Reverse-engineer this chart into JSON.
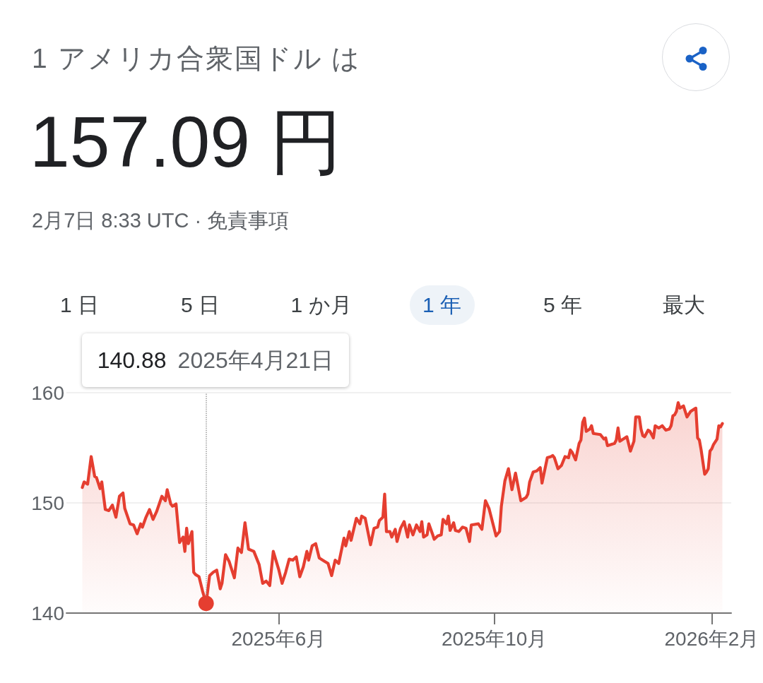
{
  "chart_data": {
    "type": "area",
    "title": "1 アメリカ合衆国ドル は",
    "subtitle": "157.09 円",
    "annotations": [
      "2月7日 8:33 UTC · 免責事項",
      "1 日",
      "5 日",
      "1 か月",
      "1 年",
      "5 年",
      "最大",
      "140.88",
      "2025年4月21日"
    ],
    "x": [
      "2025-02-10",
      "2025-02-11",
      "2025-02-13",
      "2025-02-15",
      "2025-02-17",
      "2025-02-18",
      "2025-02-20",
      "2025-02-21",
      "2025-02-23",
      "2025-02-25",
      "2025-02-27",
      "2025-03-01",
      "2025-03-03",
      "2025-03-05",
      "2025-03-06",
      "2025-03-09",
      "2025-03-11",
      "2025-03-13",
      "2025-03-15",
      "2025-03-16",
      "2025-03-18",
      "2025-03-20",
      "2025-03-22",
      "2025-03-24",
      "2025-03-27",
      "2025-03-29",
      "2025-03-30",
      "2025-04-01",
      "2025-04-02",
      "2025-04-04",
      "2025-04-06",
      "2025-04-08",
      "2025-04-09",
      "2025-04-10",
      "2025-04-11",
      "2025-04-13",
      "2025-04-14",
      "2025-04-15",
      "2025-04-17",
      "2025-04-19",
      "2025-04-21",
      "2025-04-23",
      "2025-04-25",
      "2025-04-27",
      "2025-04-29",
      "2025-04-30",
      "2025-05-02",
      "2025-05-04",
      "2025-05-07",
      "2025-05-09",
      "2025-05-11",
      "2025-05-13",
      "2025-05-15",
      "2025-05-18",
      "2025-05-21",
      "2025-05-23",
      "2025-05-25",
      "2025-05-27",
      "2025-05-29",
      "2025-06-01",
      "2025-06-03",
      "2025-06-05",
      "2025-06-07",
      "2025-06-09",
      "2025-06-11",
      "2025-06-13",
      "2025-06-15",
      "2025-06-17",
      "2025-06-18",
      "2025-06-20",
      "2025-06-22",
      "2025-06-24",
      "2025-06-27",
      "2025-06-29",
      "2025-07-01",
      "2025-07-03",
      "2025-07-05",
      "2025-07-08",
      "2025-07-09",
      "2025-07-11",
      "2025-07-12",
      "2025-07-15",
      "2025-07-17",
      "2025-07-18",
      "2025-07-20",
      "2025-07-23",
      "2025-07-25",
      "2025-07-27",
      "2025-07-28",
      "2025-07-30",
      "2025-07-31",
      "2025-08-01",
      "2025-08-03",
      "2025-08-04",
      "2025-08-06",
      "2025-08-07",
      "2025-08-09",
      "2025-08-11",
      "2025-08-13",
      "2025-08-14",
      "2025-08-16",
      "2025-08-18",
      "2025-08-20",
      "2025-08-21",
      "2025-08-22",
      "2025-08-24",
      "2025-08-25",
      "2025-08-27",
      "2025-08-28",
      "2025-08-30",
      "2025-09-01",
      "2025-09-02",
      "2025-09-04",
      "2025-09-05",
      "2025-09-06",
      "2025-09-08",
      "2025-09-09",
      "2025-09-11",
      "2025-09-13",
      "2025-09-15",
      "2025-09-17",
      "2025-09-18",
      "2025-09-22",
      "2025-09-24",
      "2025-09-26",
      "2025-09-28",
      "2025-10-02",
      "2025-10-04",
      "2025-10-05",
      "2025-10-07",
      "2025-10-09",
      "2025-10-11",
      "2025-10-13",
      "2025-10-16",
      "2025-10-19",
      "2025-10-20",
      "2025-10-21",
      "2025-10-23",
      "2025-10-25",
      "2025-10-27",
      "2025-10-28",
      "2025-10-31",
      "2025-11-02",
      "2025-11-03",
      "2025-11-04",
      "2025-11-06",
      "2025-11-08",
      "2025-11-10",
      "2025-11-12",
      "2025-11-13",
      "2025-11-14",
      "2025-11-16",
      "2025-11-18",
      "2025-11-19",
      "2025-11-20",
      "2025-11-21",
      "2025-11-22",
      "2025-11-24",
      "2025-11-25",
      "2025-11-26",
      "2025-11-30",
      "2025-12-02",
      "2025-12-03",
      "2025-12-04",
      "2025-12-08",
      "2025-12-09",
      "2025-12-10",
      "2025-12-11",
      "2025-12-13",
      "2025-12-15",
      "2025-12-17",
      "2025-12-19",
      "2025-12-20",
      "2025-12-22",
      "2025-12-23",
      "2025-12-24",
      "2025-12-25",
      "2025-12-27",
      "2025-12-28",
      "2025-12-30",
      "2025-12-31",
      "2026-01-02",
      "2026-01-04",
      "2026-01-06",
      "2026-01-08",
      "2026-01-09",
      "2026-01-10",
      "2026-01-11",
      "2026-01-12",
      "2026-01-13",
      "2026-01-14",
      "2026-01-16",
      "2026-01-17",
      "2026-01-18",
      "2026-01-20",
      "2026-01-22",
      "2026-01-23",
      "2026-01-24",
      "2026-01-25",
      "2026-01-26",
      "2026-01-28",
      "2026-01-29",
      "2026-01-30",
      "2026-01-31",
      "2026-02-01",
      "2026-02-02",
      "2026-02-04",
      "2026-02-05",
      "2026-02-06",
      "2026-02-07"
    ],
    "values": [
      151.4,
      151.9,
      151.7,
      154.2,
      152.4,
      152.3,
      151.3,
      151.9,
      149.4,
      149.3,
      149.8,
      148.7,
      150.6,
      150.9,
      149.5,
      148.1,
      148.0,
      147.2,
      148.1,
      147.8,
      148.7,
      149.4,
      148.5,
      149.2,
      150.6,
      150.2,
      151.2,
      149.9,
      149.7,
      149.9,
      146.4,
      146.9,
      145.6,
      147.7,
      146.3,
      147.4,
      143.7,
      143.5,
      143.3,
      142.0,
      140.88,
      143.4,
      143.7,
      143.9,
      142.2,
      142.7,
      145.3,
      144.7,
      143.2,
      145.9,
      145.5,
      148.2,
      145.8,
      145.6,
      144.4,
      142.7,
      142.9,
      142.5,
      145.6,
      144.0,
      142.7,
      143.7,
      144.9,
      144.8,
      145.1,
      143.3,
      144.2,
      145.6,
      144.8,
      146.1,
      146.3,
      145.0,
      144.7,
      144.5,
      143.4,
      144.8,
      144.5,
      146.8,
      146.1,
      147.4,
      146.6,
      148.6,
      148.1,
      148.8,
      148.6,
      146.2,
      147.7,
      147.8,
      148.4,
      148.7,
      150.8,
      147.4,
      147.4,
      146.9,
      147.6,
      146.5,
      147.7,
      148.3,
      146.9,
      148.0,
      147.1,
      148.0,
      147.4,
      148.3,
      146.9,
      147.1,
      148.1,
      147.2,
      146.7,
      147.0,
      147.1,
      148.5,
      148.1,
      148.8,
      147.5,
      148.2,
      147.5,
      147.4,
      147.8,
      147.7,
      146.5,
      148.0,
      148.1,
      147.6,
      150.2,
      149.5,
      147.0,
      147.4,
      149.7,
      152.0,
      153.1,
      151.2,
      152.7,
      150.2,
      150.5,
      150.8,
      151.9,
      152.8,
      152.9,
      153.2,
      151.8,
      154.1,
      154.2,
      154.3,
      154.1,
      153.1,
      153.4,
      154.2,
      154.1,
      154.8,
      154.6,
      153.9,
      155.4,
      155.7,
      157.3,
      157.7,
      156.5,
      156.7,
      157.0,
      156.3,
      156.2,
      155.8,
      155.9,
      155.2,
      155.4,
      155.7,
      156.8,
      155.6,
      155.8,
      156.0,
      154.7,
      155.6,
      157.8,
      157.8,
      156.7,
      156.1,
      156.0,
      156.6,
      156.5,
      155.9,
      157.0,
      156.8,
      157.0,
      156.6,
      156.7,
      157.0,
      157.9,
      158.0,
      158.3,
      159.1,
      158.6,
      158.8,
      158.3,
      157.8,
      158.3,
      158.5,
      158.6,
      155.9,
      155.7,
      154.8,
      152.6,
      152.8,
      153.1,
      154.7,
      154.9,
      155.3,
      155.8,
      157.0,
      156.9,
      157.2
    ],
    "color": "#e53e30",
    "xlim": [
      "2025-02-01",
      "2026-02-12"
    ],
    "xticks": [
      {
        "value": "2025-06-01",
        "label": "2025年6月"
      },
      {
        "value": "2025-10-01",
        "label": "2025年10月"
      },
      {
        "value": "2026-02-01",
        "label": "2026年2月"
      }
    ],
    "ylim": [
      140,
      160
    ],
    "yticks": [
      140,
      150,
      160
    ],
    "grid": "y",
    "marker": "none",
    "ref_lines": [
      {
        "axis": "x",
        "value": "2025-04-21",
        "color": "#9e9e9e",
        "line_style": "dotted"
      }
    ]
  }
}
